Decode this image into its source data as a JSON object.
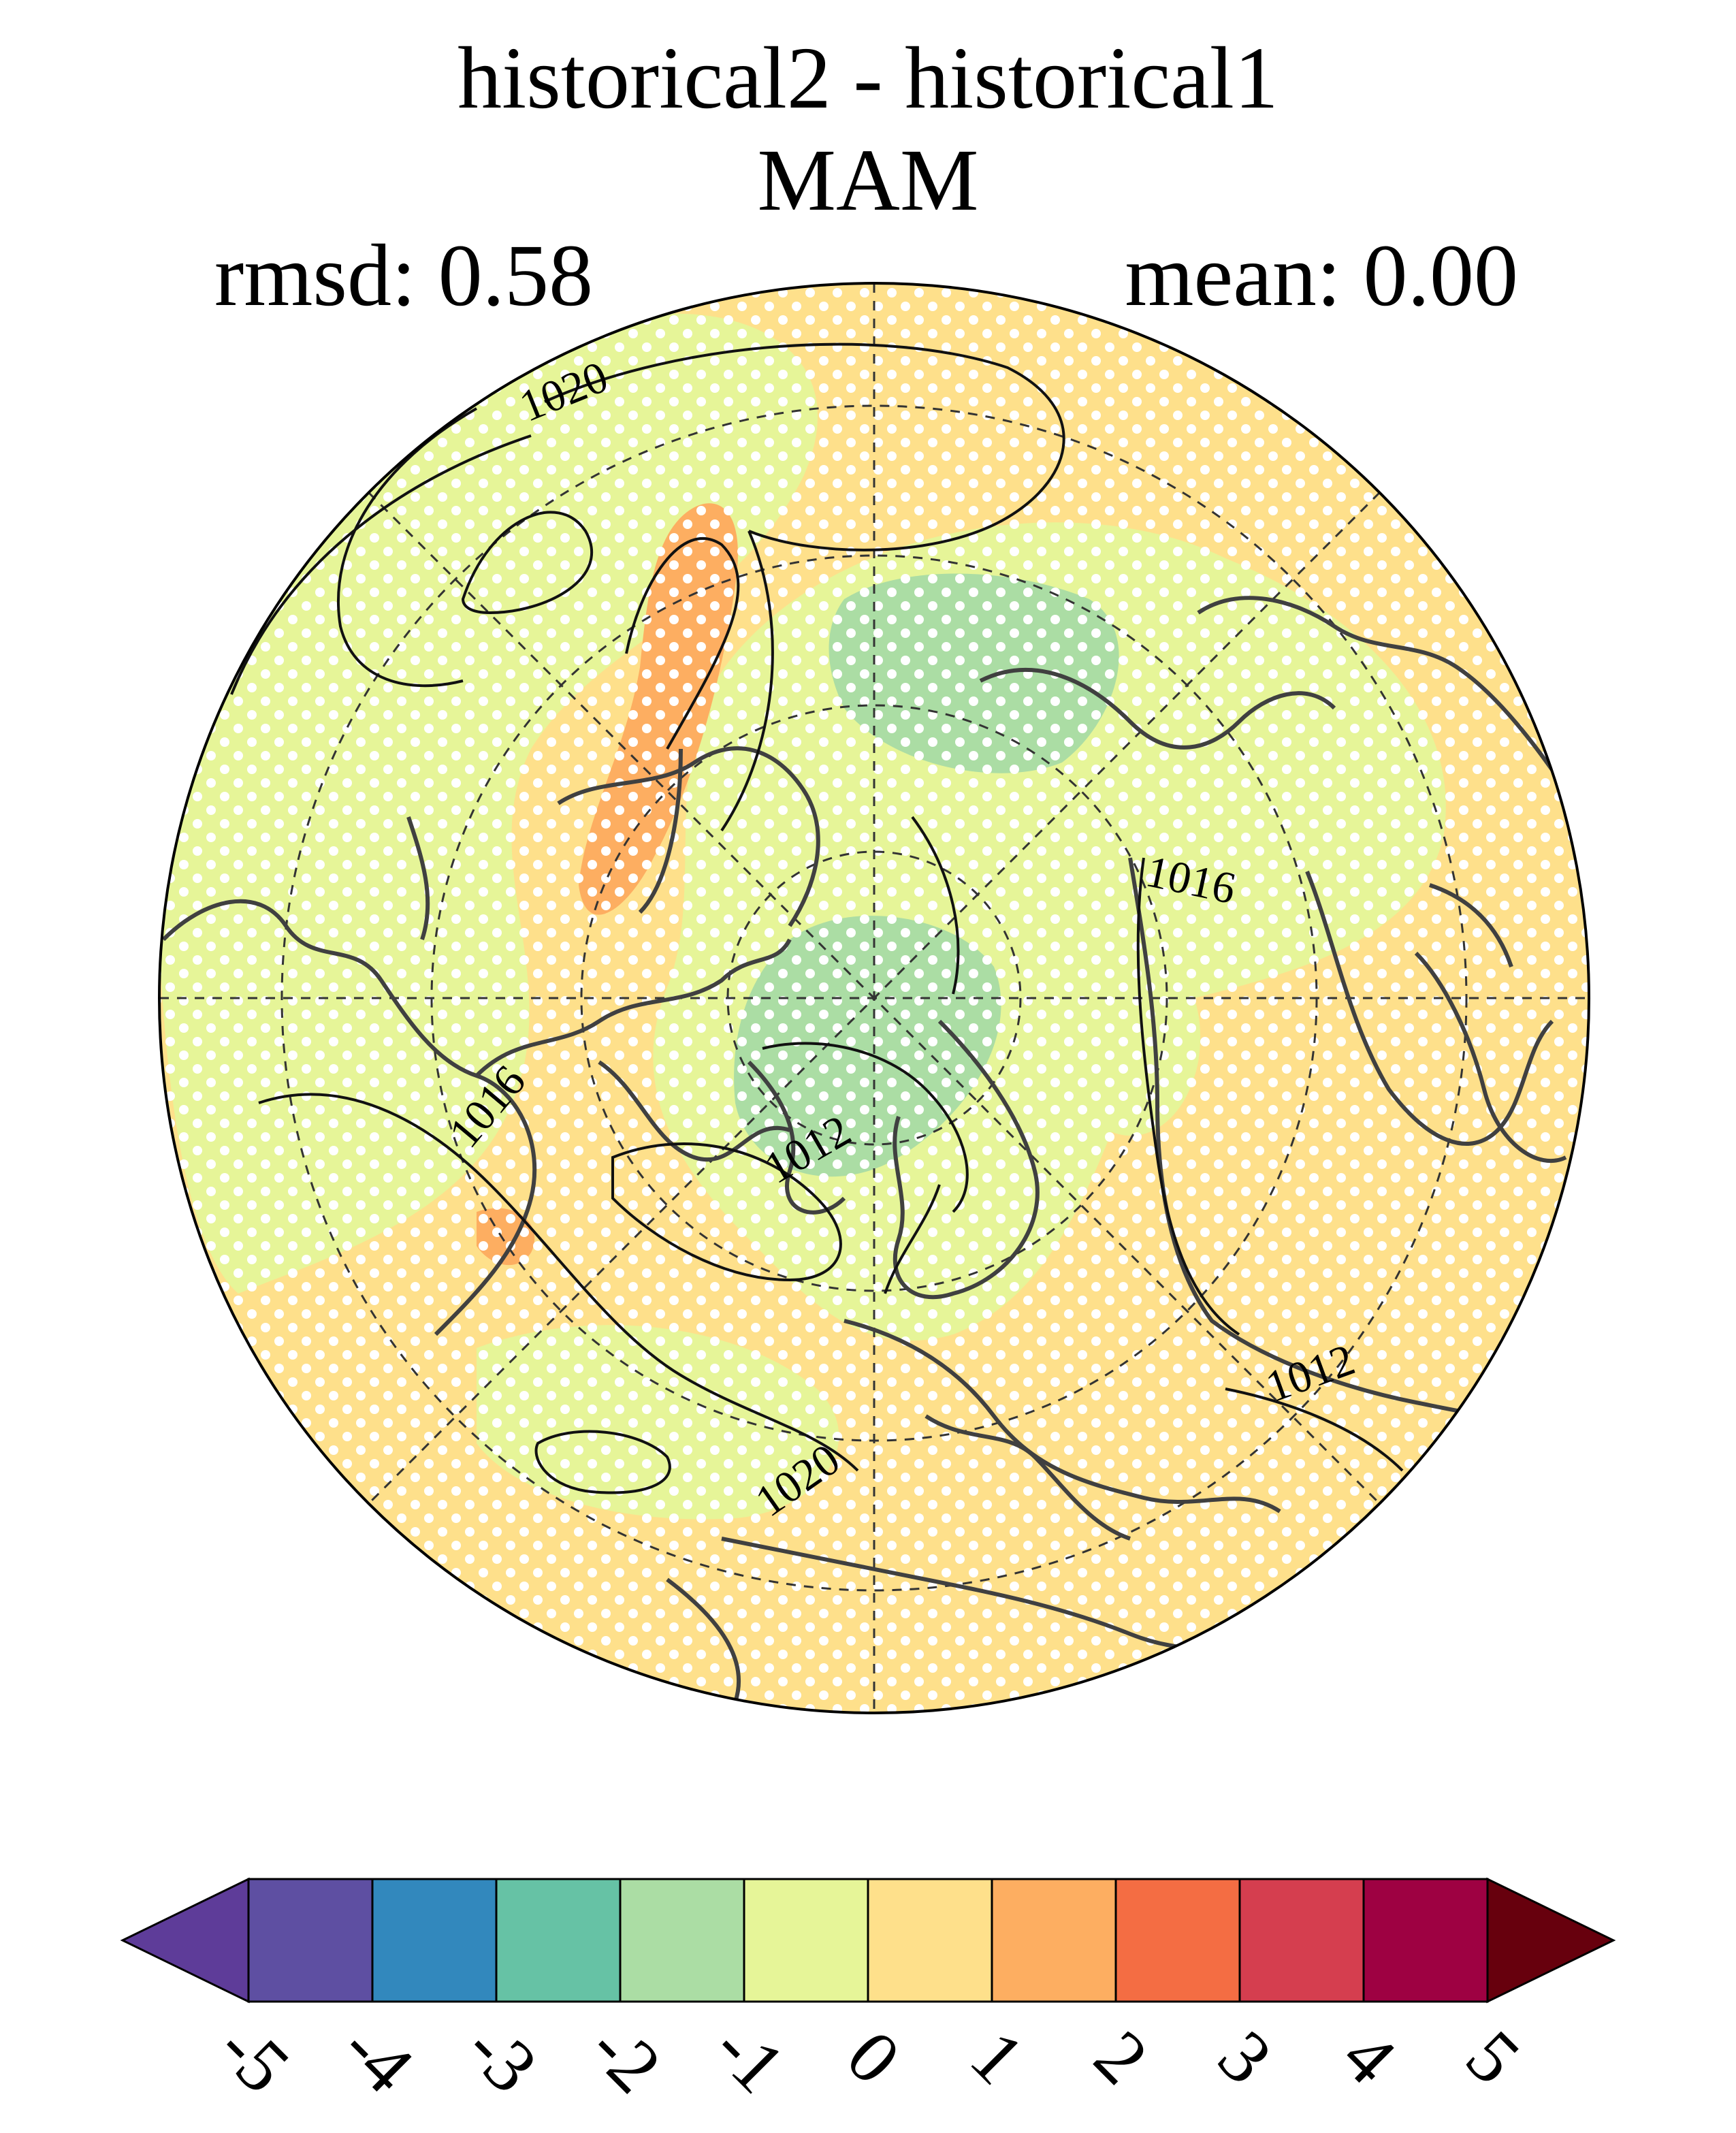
{
  "title": "historical2 - historical1",
  "season": "MAM",
  "stats": {
    "rmsd_text": "rmsd: 0.58",
    "mean_text": "mean: 0.00"
  },
  "contour_labels": [
    "1020",
    "1016",
    "1016",
    "1012",
    "1012",
    "1020"
  ],
  "colorbar": {
    "ticks": [
      "-5",
      "-4",
      "-3",
      "-2",
      "-1",
      "0",
      "1",
      "2",
      "3",
      "4",
      "5"
    ],
    "colors": [
      "#5e3c99",
      "#5e4fa2",
      "#3288bd",
      "#66c2a5",
      "#abdda4",
      "#e6f598",
      "#fee08b",
      "#fdae61",
      "#f46d43",
      "#d53e4f",
      "#9e0142",
      "#67000d"
    ],
    "extend": "both"
  },
  "projection": "north-polar-stereographic",
  "stippling": "white-dots"
}
